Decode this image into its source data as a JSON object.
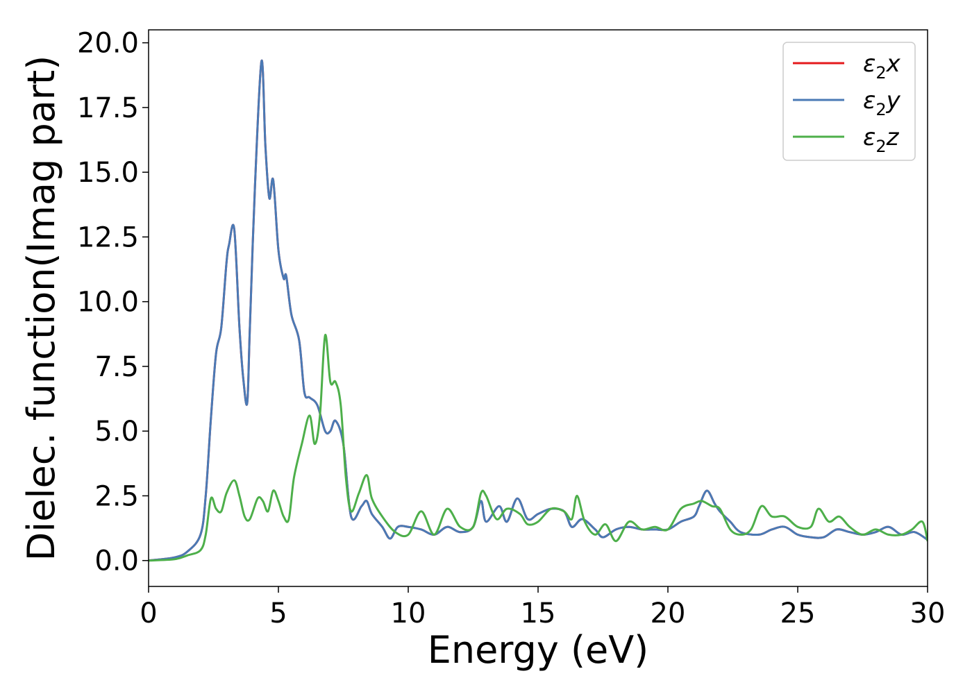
{
  "chart_data": {
    "type": "line",
    "xlabel": "Energy (eV)",
    "ylabel": "Dielec. function(Imag part)",
    "xlim": [
      0,
      30
    ],
    "ylim": [
      -1.0,
      20.5
    ],
    "xticks": [
      "0",
      "5",
      "10",
      "15",
      "20",
      "25",
      "30"
    ],
    "yticks": [
      "0.0",
      "2.5",
      "5.0",
      "7.5",
      "10.0",
      "12.5",
      "15.0",
      "17.5",
      "20.0"
    ],
    "grid": false,
    "legend_position": "top-right",
    "series": [
      {
        "name": "ε₂x",
        "legend_main": "ε",
        "legend_sub": "2",
        "legend_tail": "x",
        "color": "#e41a1c",
        "x": [
          0,
          1,
          1.5,
          2.0,
          2.2,
          2.4,
          2.6,
          2.8,
          3.0,
          3.1,
          3.3,
          3.5,
          3.65,
          3.8,
          3.9,
          4.1,
          4.35,
          4.5,
          4.65,
          4.8,
          5.0,
          5.2,
          5.3,
          5.5,
          5.8,
          6.0,
          6.2,
          6.5,
          6.8,
          7.0,
          7.2,
          7.5,
          7.8,
          8.2,
          8.4,
          8.6,
          9.0,
          9.3,
          9.6,
          10.0,
          10.5,
          11.0,
          11.5,
          12.0,
          12.5,
          12.8,
          13.0,
          13.5,
          13.8,
          14.2,
          14.6,
          15.0,
          15.5,
          16.0,
          16.3,
          16.7,
          17.2,
          17.5,
          18.0,
          18.5,
          19.0,
          19.5,
          20.0,
          20.5,
          21.0,
          21.2,
          21.5,
          21.8,
          22.0,
          22.4,
          22.8,
          23.5,
          24.0,
          24.5,
          25.0,
          25.5,
          26.0,
          26.5,
          27.0,
          27.5,
          28.0,
          28.5,
          29.0,
          29.5,
          30.0
        ],
        "values": [
          0,
          0.12,
          0.35,
          1.0,
          2.5,
          5.5,
          8.0,
          9.0,
          11.5,
          12.2,
          12.8,
          9.0,
          7.0,
          6.1,
          9.0,
          14.5,
          19.3,
          16.0,
          14.0,
          14.7,
          12.0,
          10.9,
          11.0,
          9.5,
          8.5,
          6.5,
          6.3,
          6.0,
          5.0,
          5.0,
          5.4,
          4.5,
          1.7,
          2.1,
          2.3,
          1.8,
          1.3,
          0.85,
          1.3,
          1.3,
          1.2,
          1.0,
          1.3,
          1.1,
          1.3,
          2.3,
          1.5,
          2.1,
          1.5,
          2.4,
          1.6,
          1.8,
          2.0,
          1.9,
          1.3,
          1.6,
          1.2,
          0.9,
          1.2,
          1.3,
          1.2,
          1.2,
          1.2,
          1.5,
          1.7,
          2.1,
          2.7,
          2.2,
          1.9,
          1.5,
          1.1,
          1.0,
          1.2,
          1.3,
          1.0,
          0.9,
          0.9,
          1.2,
          1.1,
          1.0,
          1.1,
          1.3,
          1.0,
          1.1,
          0.8
        ]
      },
      {
        "name": "ε₂y",
        "legend_main": "ε",
        "legend_sub": "2",
        "legend_tail": "y",
        "color": "#4a7ab5",
        "x": [
          0,
          1,
          1.5,
          2.0,
          2.2,
          2.4,
          2.6,
          2.8,
          3.0,
          3.1,
          3.3,
          3.5,
          3.65,
          3.8,
          3.9,
          4.1,
          4.35,
          4.5,
          4.65,
          4.8,
          5.0,
          5.2,
          5.3,
          5.5,
          5.8,
          6.0,
          6.2,
          6.5,
          6.8,
          7.0,
          7.2,
          7.5,
          7.8,
          8.2,
          8.4,
          8.6,
          9.0,
          9.3,
          9.6,
          10.0,
          10.5,
          11.0,
          11.5,
          12.0,
          12.5,
          12.8,
          13.0,
          13.5,
          13.8,
          14.2,
          14.6,
          15.0,
          15.5,
          16.0,
          16.3,
          16.7,
          17.2,
          17.5,
          18.0,
          18.5,
          19.0,
          19.5,
          20.0,
          20.5,
          21.0,
          21.2,
          21.5,
          21.8,
          22.0,
          22.4,
          22.8,
          23.5,
          24.0,
          24.5,
          25.0,
          25.5,
          26.0,
          26.5,
          27.0,
          27.5,
          28.0,
          28.5,
          29.0,
          29.5,
          30.0
        ],
        "values": [
          0,
          0.12,
          0.35,
          1.0,
          2.5,
          5.5,
          8.0,
          9.0,
          11.5,
          12.2,
          12.8,
          9.0,
          7.0,
          6.1,
          9.0,
          14.5,
          19.3,
          16.0,
          14.0,
          14.7,
          12.0,
          10.9,
          11.0,
          9.5,
          8.5,
          6.5,
          6.3,
          6.0,
          5.0,
          5.0,
          5.4,
          4.5,
          1.7,
          2.1,
          2.3,
          1.8,
          1.3,
          0.85,
          1.3,
          1.3,
          1.2,
          1.0,
          1.3,
          1.1,
          1.3,
          2.3,
          1.5,
          2.1,
          1.5,
          2.4,
          1.6,
          1.8,
          2.0,
          1.9,
          1.3,
          1.6,
          1.2,
          0.9,
          1.2,
          1.3,
          1.2,
          1.2,
          1.2,
          1.5,
          1.7,
          2.1,
          2.7,
          2.2,
          1.9,
          1.5,
          1.1,
          1.0,
          1.2,
          1.3,
          1.0,
          0.9,
          0.9,
          1.2,
          1.1,
          1.0,
          1.1,
          1.3,
          1.0,
          1.1,
          0.8
        ]
      },
      {
        "name": "ε₂z",
        "legend_main": "ε",
        "legend_sub": "2",
        "legend_tail": "z",
        "color": "#4daf4a",
        "x": [
          0,
          1,
          1.5,
          2.0,
          2.2,
          2.4,
          2.6,
          2.8,
          3.0,
          3.3,
          3.5,
          3.7,
          3.9,
          4.2,
          4.4,
          4.6,
          4.8,
          5.0,
          5.2,
          5.4,
          5.6,
          5.9,
          6.2,
          6.4,
          6.6,
          6.8,
          7.0,
          7.2,
          7.4,
          7.6,
          7.8,
          8.1,
          8.4,
          8.6,
          9.0,
          9.5,
          10.0,
          10.5,
          11.0,
          11.5,
          12.0,
          12.5,
          12.8,
          13.0,
          13.4,
          13.8,
          14.3,
          14.6,
          15.0,
          15.5,
          16.0,
          16.3,
          16.5,
          16.8,
          17.2,
          17.6,
          18.0,
          18.5,
          19.0,
          19.5,
          20.0,
          20.5,
          21.0,
          21.3,
          21.7,
          22.0,
          22.4,
          22.8,
          23.2,
          23.6,
          24.0,
          24.5,
          25.0,
          25.5,
          25.8,
          26.2,
          26.6,
          27.0,
          27.5,
          28.0,
          28.5,
          29.0,
          29.4,
          29.8,
          30.0
        ],
        "values": [
          0,
          0.05,
          0.2,
          0.4,
          1.0,
          2.4,
          2.0,
          1.9,
          2.6,
          3.1,
          2.5,
          1.7,
          1.6,
          2.4,
          2.3,
          1.9,
          2.7,
          2.3,
          1.7,
          1.6,
          3.2,
          4.5,
          5.6,
          4.5,
          5.6,
          8.7,
          6.9,
          6.9,
          6.0,
          3.2,
          1.9,
          2.6,
          3.3,
          2.4,
          1.7,
          1.1,
          1.0,
          1.9,
          1.0,
          2.0,
          1.3,
          1.3,
          2.6,
          2.5,
          1.6,
          2.0,
          1.8,
          1.4,
          1.5,
          2.0,
          1.9,
          1.6,
          2.5,
          1.5,
          1.0,
          1.4,
          0.75,
          1.5,
          1.2,
          1.3,
          1.2,
          2.0,
          2.2,
          2.3,
          2.1,
          2.0,
          1.2,
          1.0,
          1.2,
          2.1,
          1.7,
          1.7,
          1.3,
          1.3,
          2.0,
          1.5,
          1.7,
          1.3,
          1.0,
          1.2,
          1.0,
          1.0,
          1.2,
          1.5,
          0.75
        ]
      }
    ]
  }
}
